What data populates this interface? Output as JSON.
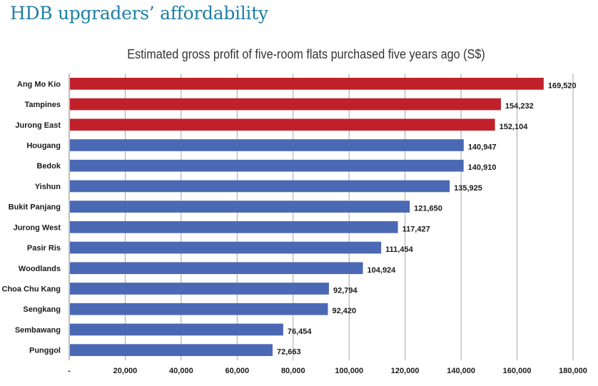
{
  "header": {
    "title": "HDB upgraders’ affordability"
  },
  "chart_data": {
    "type": "bar",
    "orientation": "horizontal",
    "title": "Estimated gross profit of five-room flats purchased five years ago (S$)",
    "categories": [
      "Ang Mo Kio",
      "Tampines",
      "Jurong East",
      "Hougang",
      "Bedok",
      "Yishun",
      "Bukit Panjang",
      "Jurong West",
      "Pasir Ris",
      "Woodlands",
      "Choa Chu Kang",
      "Sengkang",
      "Sembawang",
      "Punggol"
    ],
    "values": [
      169520,
      154232,
      152104,
      140947,
      140910,
      135925,
      121650,
      117427,
      111454,
      104924,
      92794,
      92420,
      76454,
      72663
    ],
    "value_labels": [
      "169,520",
      "154,232",
      "152,104",
      "140,947",
      "140,910",
      "135,925",
      "121,650",
      "117,427",
      "111,454",
      "104,924",
      "92,794",
      "92,420",
      "76,454",
      "72,663"
    ],
    "highlight_count": 3,
    "colors": {
      "highlight": "#c0202a",
      "default": "#4a68b4",
      "grid": "#a6a6a6"
    },
    "xlim": [
      0,
      180000
    ],
    "xticks": [
      0,
      20000,
      40000,
      60000,
      80000,
      100000,
      120000,
      140000,
      160000,
      180000
    ],
    "xtick_labels": [
      "-",
      "20,000",
      "40,000",
      "60,000",
      "80,000",
      "100,000",
      "120,000",
      "140,000",
      "160,000",
      "180,000"
    ],
    "grid": true,
    "xlabel": "",
    "ylabel": ""
  }
}
